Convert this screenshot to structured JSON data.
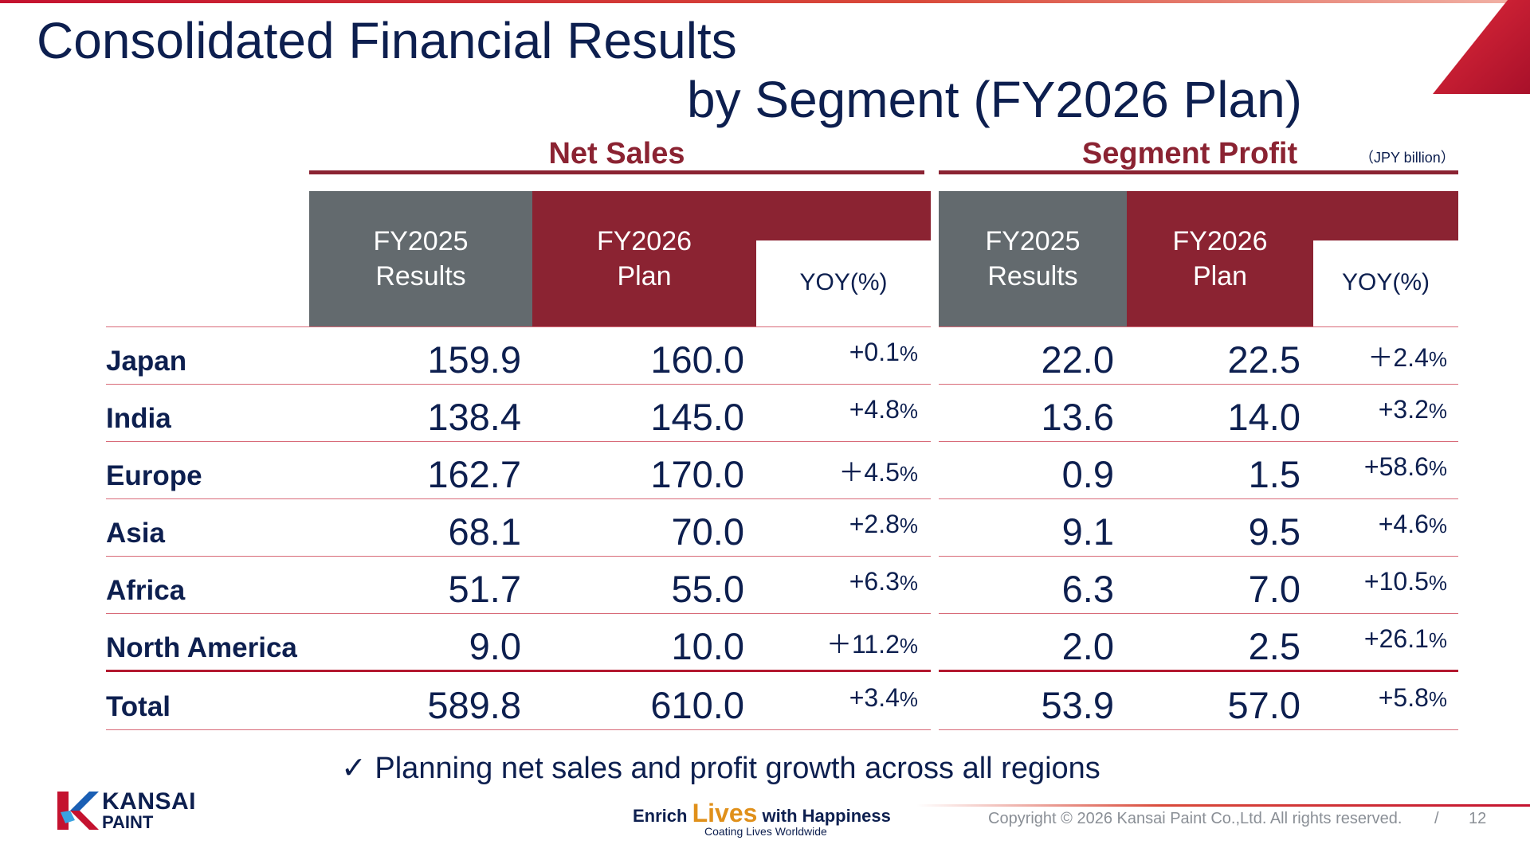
{
  "title": {
    "line1": "Consolidated Financial Results",
    "line2": "by Segment (FY2026 Plan)"
  },
  "net_sales": {
    "title": "Net Sales",
    "col1": [
      "FY2025",
      "Results"
    ],
    "col2": [
      "FY2026",
      "Plan"
    ],
    "col3": "YOY(%)"
  },
  "segment_profit": {
    "title": "Segment Profit",
    "unit": "（JPY billion）",
    "col1": [
      "FY2025",
      "Results"
    ],
    "col2": [
      "FY2026",
      "Plan"
    ],
    "col3": "YOY(%)"
  },
  "rows": [
    {
      "label": "Japan",
      "ns_fy2025": "159.9",
      "ns_fy2026": "160.0",
      "ns_yoy": "+0.1",
      "sp_fy2025": "22.0",
      "sp_fy2026": "22.5",
      "sp_yoy": "＋2.4"
    },
    {
      "label": "India",
      "ns_fy2025": "138.4",
      "ns_fy2026": "145.0",
      "ns_yoy": "+4.8",
      "sp_fy2025": "13.6",
      "sp_fy2026": "14.0",
      "sp_yoy": "+3.2"
    },
    {
      "label": "Europe",
      "ns_fy2025": "162.7",
      "ns_fy2026": "170.0",
      "ns_yoy": "＋4.5",
      "sp_fy2025": "0.9",
      "sp_fy2026": "1.5",
      "sp_yoy": "+58.6"
    },
    {
      "label": "Asia",
      "ns_fy2025": "68.1",
      "ns_fy2026": "70.0",
      "ns_yoy": "+2.8",
      "sp_fy2025": "9.1",
      "sp_fy2026": "9.5",
      "sp_yoy": "+4.6"
    },
    {
      "label": "Africa",
      "ns_fy2025": "51.7",
      "ns_fy2026": "55.0",
      "ns_yoy": "+6.3",
      "sp_fy2025": "6.3",
      "sp_fy2026": "7.0",
      "sp_yoy": "+10.5"
    },
    {
      "label": "North America",
      "ns_fy2025": "9.0",
      "ns_fy2026": "10.0",
      "ns_yoy": "＋11.2",
      "sp_fy2025": "2.0",
      "sp_fy2026": "2.5",
      "sp_yoy": "+26.1"
    },
    {
      "label": "Total",
      "ns_fy2025": "589.8",
      "ns_fy2026": "610.0",
      "ns_yoy": "+3.4",
      "sp_fy2025": "53.9",
      "sp_fy2026": "57.0",
      "sp_yoy": "+5.8"
    }
  ],
  "pct": "%",
  "note": "✓ Planning net sales and profit growth across all regions",
  "logo": {
    "line1": "KANSAI",
    "line2": "PAINT"
  },
  "slogan": {
    "part1": "Enrich ",
    "part2": "Lives",
    "part3": " with Happiness",
    "sub": "Coating Lives Worldwide"
  },
  "footer": {
    "copyright": "Copyright © 2026 Kansai Paint Co.,Ltd. All rights reserved.",
    "separator": "/",
    "page": "12"
  },
  "colors": {
    "navy": "#0d1f4f",
    "maroon": "#8b2332",
    "gray": "#636a6e",
    "accent": "#c4122f",
    "orange": "#e0901a"
  }
}
